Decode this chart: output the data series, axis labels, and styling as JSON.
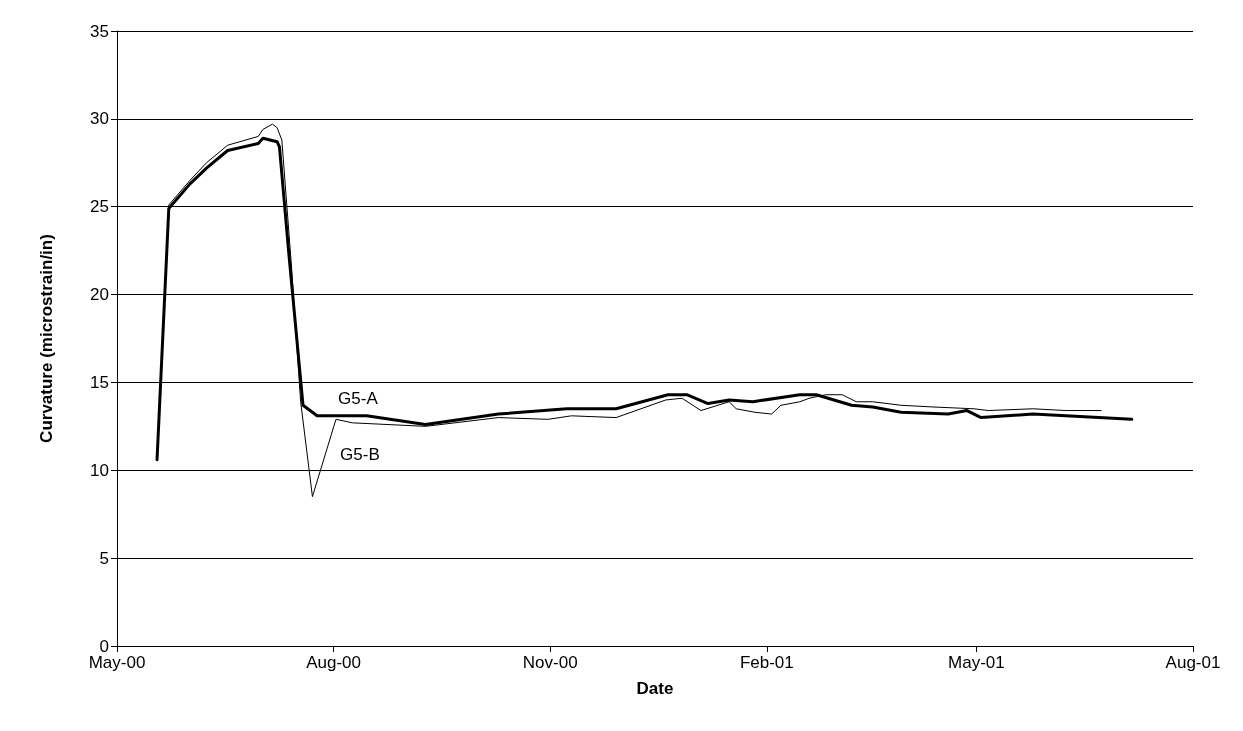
{
  "chart_data": {
    "type": "line",
    "xlabel": "Date",
    "ylabel": "Curvature (microstrain/in)",
    "xlim": [
      "2000-05-01",
      "2001-08-01"
    ],
    "xticks": [
      {
        "value": "2000-05-01",
        "label": "May-00"
      },
      {
        "value": "2000-08-01",
        "label": "Aug-00"
      },
      {
        "value": "2000-11-01",
        "label": "Nov-00"
      },
      {
        "value": "2001-02-01",
        "label": "Feb-01"
      },
      {
        "value": "2001-05-01",
        "label": "May-01"
      },
      {
        "value": "2001-08-01",
        "label": "Aug-01"
      }
    ],
    "ylim": [
      0,
      35
    ],
    "yticks": [
      0,
      5,
      10,
      15,
      20,
      25,
      30,
      35
    ],
    "grid": "y",
    "legend": false,
    "marker": "none",
    "line_style": "solid",
    "series": [
      {
        "name": "G5-A",
        "color": "#000000",
        "x": [
          "2000-05-18",
          "2000-05-23",
          "2000-06-01",
          "2000-06-08",
          "2000-06-17",
          "2000-06-30",
          "2000-07-02",
          "2000-07-08",
          "2000-07-09",
          "2000-07-13",
          "2000-07-19",
          "2000-07-25",
          "2000-08-02",
          "2000-08-15",
          "2000-09-09",
          "2000-10-10",
          "2000-11-08",
          "2000-11-29",
          "2000-12-21",
          "2000-12-29",
          "2001-01-07",
          "2001-01-16",
          "2001-01-26",
          "2001-02-15",
          "2001-02-22",
          "2001-03-09",
          "2001-03-18",
          "2001-03-30",
          "2001-04-19",
          "2001-04-27",
          "2001-05-03",
          "2001-05-25",
          "2001-06-08",
          "2001-07-06"
        ],
        "values": [
          10.6,
          24.9,
          26.3,
          27.2,
          28.2,
          28.6,
          28.9,
          28.7,
          28.4,
          22.3,
          13.7,
          13.1,
          13.1,
          13.1,
          12.6,
          13.2,
          13.5,
          13.5,
          14.3,
          14.3,
          13.8,
          14.0,
          13.9,
          14.3,
          14.3,
          13.7,
          13.6,
          13.3,
          13.2,
          13.4,
          13.0,
          13.2,
          13.1,
          12.9
        ]
      },
      {
        "name": "G5-B",
        "color": "#000000",
        "x": [
          "2000-05-18",
          "2000-05-23",
          "2000-06-01",
          "2000-06-08",
          "2000-06-17",
          "2000-06-30",
          "2000-07-02",
          "2000-07-06",
          "2000-07-08",
          "2000-07-10",
          "2000-07-14",
          "2000-07-18",
          "2000-07-23",
          "2000-08-02",
          "2000-08-09",
          "2000-09-09",
          "2000-10-10",
          "2000-10-31",
          "2000-11-10",
          "2000-11-29",
          "2000-12-20",
          "2000-12-27",
          "2001-01-04",
          "2001-01-16",
          "2001-01-19",
          "2001-01-27",
          "2001-02-03",
          "2001-02-07",
          "2001-02-15",
          "2001-02-19",
          "2001-02-26",
          "2001-03-05",
          "2001-03-11",
          "2001-03-18",
          "2001-03-30",
          "2001-04-13",
          "2001-04-30",
          "2001-05-06",
          "2001-05-25",
          "2001-06-08",
          "2001-06-23"
        ],
        "values": [
          10.6,
          25.1,
          26.5,
          27.5,
          28.5,
          29.0,
          29.4,
          29.7,
          29.5,
          28.8,
          21.8,
          13.9,
          8.5,
          12.9,
          12.7,
          12.5,
          13.0,
          12.9,
          13.1,
          13.0,
          14.0,
          14.1,
          13.4,
          13.9,
          13.5,
          13.3,
          13.2,
          13.7,
          13.9,
          14.1,
          14.3,
          14.3,
          13.9,
          13.9,
          13.7,
          13.6,
          13.5,
          13.4,
          13.5,
          13.4,
          13.4
        ]
      }
    ]
  }
}
